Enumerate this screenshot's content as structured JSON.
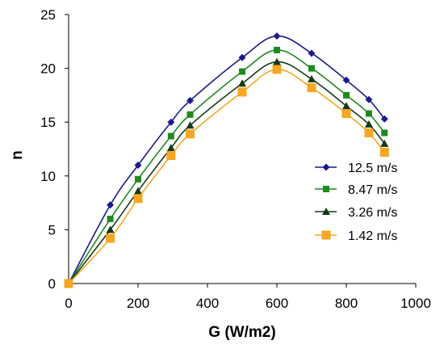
{
  "chart_data": {
    "type": "line",
    "title": "",
    "xlabel": "G (W/m2)",
    "ylabel": "n",
    "xlim": [
      0,
      1000
    ],
    "ylim": [
      0,
      25
    ],
    "xticks": [
      "0",
      "200",
      "400",
      "600",
      "800",
      "1000"
    ],
    "yticks": [
      "0",
      "5",
      "10",
      "15",
      "20",
      "25"
    ],
    "grid": false,
    "legend_position": "right",
    "series": [
      {
        "name": "12.5 m/s",
        "color": "#1a1a8c",
        "marker": "diamond",
        "points": [
          [
            0,
            0
          ],
          [
            120,
            7.3
          ],
          [
            200,
            11.0
          ],
          [
            295,
            15.0
          ],
          [
            350,
            17.0
          ],
          [
            500,
            21.0
          ],
          [
            600,
            23.0
          ],
          [
            700,
            21.4
          ],
          [
            800,
            18.9
          ],
          [
            865,
            17.1
          ],
          [
            910,
            15.3
          ]
        ]
      },
      {
        "name": "8.47 m/s",
        "color": "#1f8a1f",
        "marker": "square",
        "points": [
          [
            0,
            0
          ],
          [
            120,
            6.0
          ],
          [
            200,
            9.7
          ],
          [
            295,
            13.7
          ],
          [
            350,
            15.7
          ],
          [
            500,
            19.7
          ],
          [
            600,
            21.7
          ],
          [
            700,
            20.0
          ],
          [
            800,
            17.5
          ],
          [
            865,
            15.8
          ],
          [
            910,
            14.0
          ]
        ]
      },
      {
        "name": "3.26 m/s",
        "color": "#153a15",
        "marker": "triangle",
        "points": [
          [
            0,
            0
          ],
          [
            120,
            5.0
          ],
          [
            200,
            8.6
          ],
          [
            295,
            12.6
          ],
          [
            350,
            14.7
          ],
          [
            500,
            18.6
          ],
          [
            600,
            20.6
          ],
          [
            700,
            19.0
          ],
          [
            800,
            16.5
          ],
          [
            865,
            14.8
          ],
          [
            910,
            13.0
          ]
        ]
      },
      {
        "name": "1.42 m/s",
        "color": "#f5a623",
        "marker": "square",
        "points": [
          [
            0,
            0
          ],
          [
            120,
            4.2
          ],
          [
            200,
            7.9
          ],
          [
            295,
            11.9
          ],
          [
            350,
            13.9
          ],
          [
            500,
            17.8
          ],
          [
            600,
            19.9
          ],
          [
            700,
            18.2
          ],
          [
            800,
            15.8
          ],
          [
            865,
            14.0
          ],
          [
            910,
            12.2
          ]
        ]
      }
    ]
  }
}
